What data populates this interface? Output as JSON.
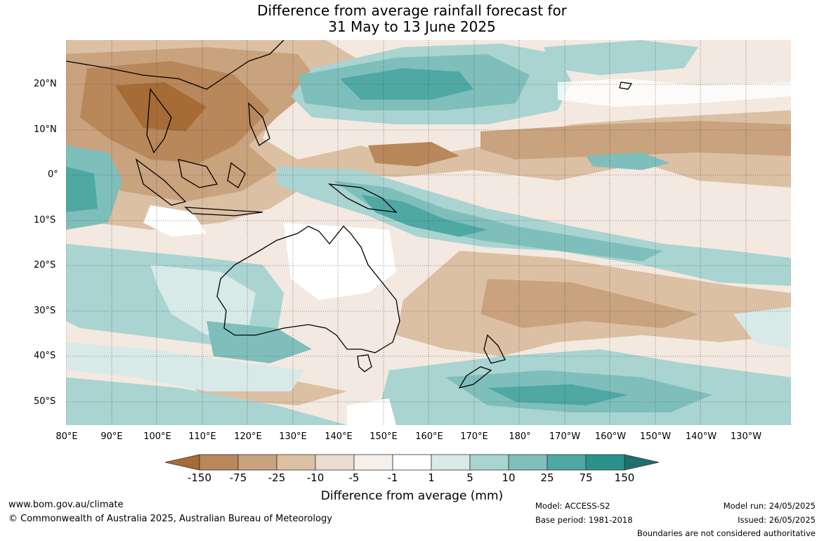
{
  "title": {
    "line1": "Difference from average rainfall forecast for",
    "line2": "31 May to 13 June 2025"
  },
  "map": {
    "lat_labels": [
      "20°N",
      "10°N",
      "0°",
      "10°S",
      "20°S",
      "30°S",
      "40°S",
      "50°S"
    ],
    "lon_labels": [
      "80°E",
      "90°E",
      "100°E",
      "110°E",
      "120°E",
      "130°E",
      "140°E",
      "150°E",
      "160°E",
      "170°E",
      "180°",
      "170°W",
      "160°W",
      "150°W",
      "140°W",
      "130°W"
    ]
  },
  "legend": {
    "title": "Difference from average (mm)",
    "tick_labels": [
      "-150",
      "-75",
      "-25",
      "-10",
      "-5",
      "-1",
      "1",
      "5",
      "10",
      "25",
      "75",
      "150"
    ],
    "colors": [
      "#a66b36",
      "#b8875a",
      "#c9a27e",
      "#dbc0a4",
      "#ebdccf",
      "#f7f0ea",
      "#ffffff",
      "#d8eae8",
      "#a9d4d1",
      "#7fbfbb",
      "#4fa8a4",
      "#2b918d",
      "#1f6f6c"
    ]
  },
  "footer": {
    "url": "www.bom.gov.au/climate",
    "copyright": "© Commonwealth of Australia 2025, Australian Bureau of Meteorology",
    "model": "Model: ACCESS-S2",
    "base_period": "Base period: 1981-2018",
    "model_run": "Model run: 24/05/2025",
    "issued": "Issued: 26/05/2025",
    "disclaimer": "Boundaries are not considered authoritative"
  }
}
